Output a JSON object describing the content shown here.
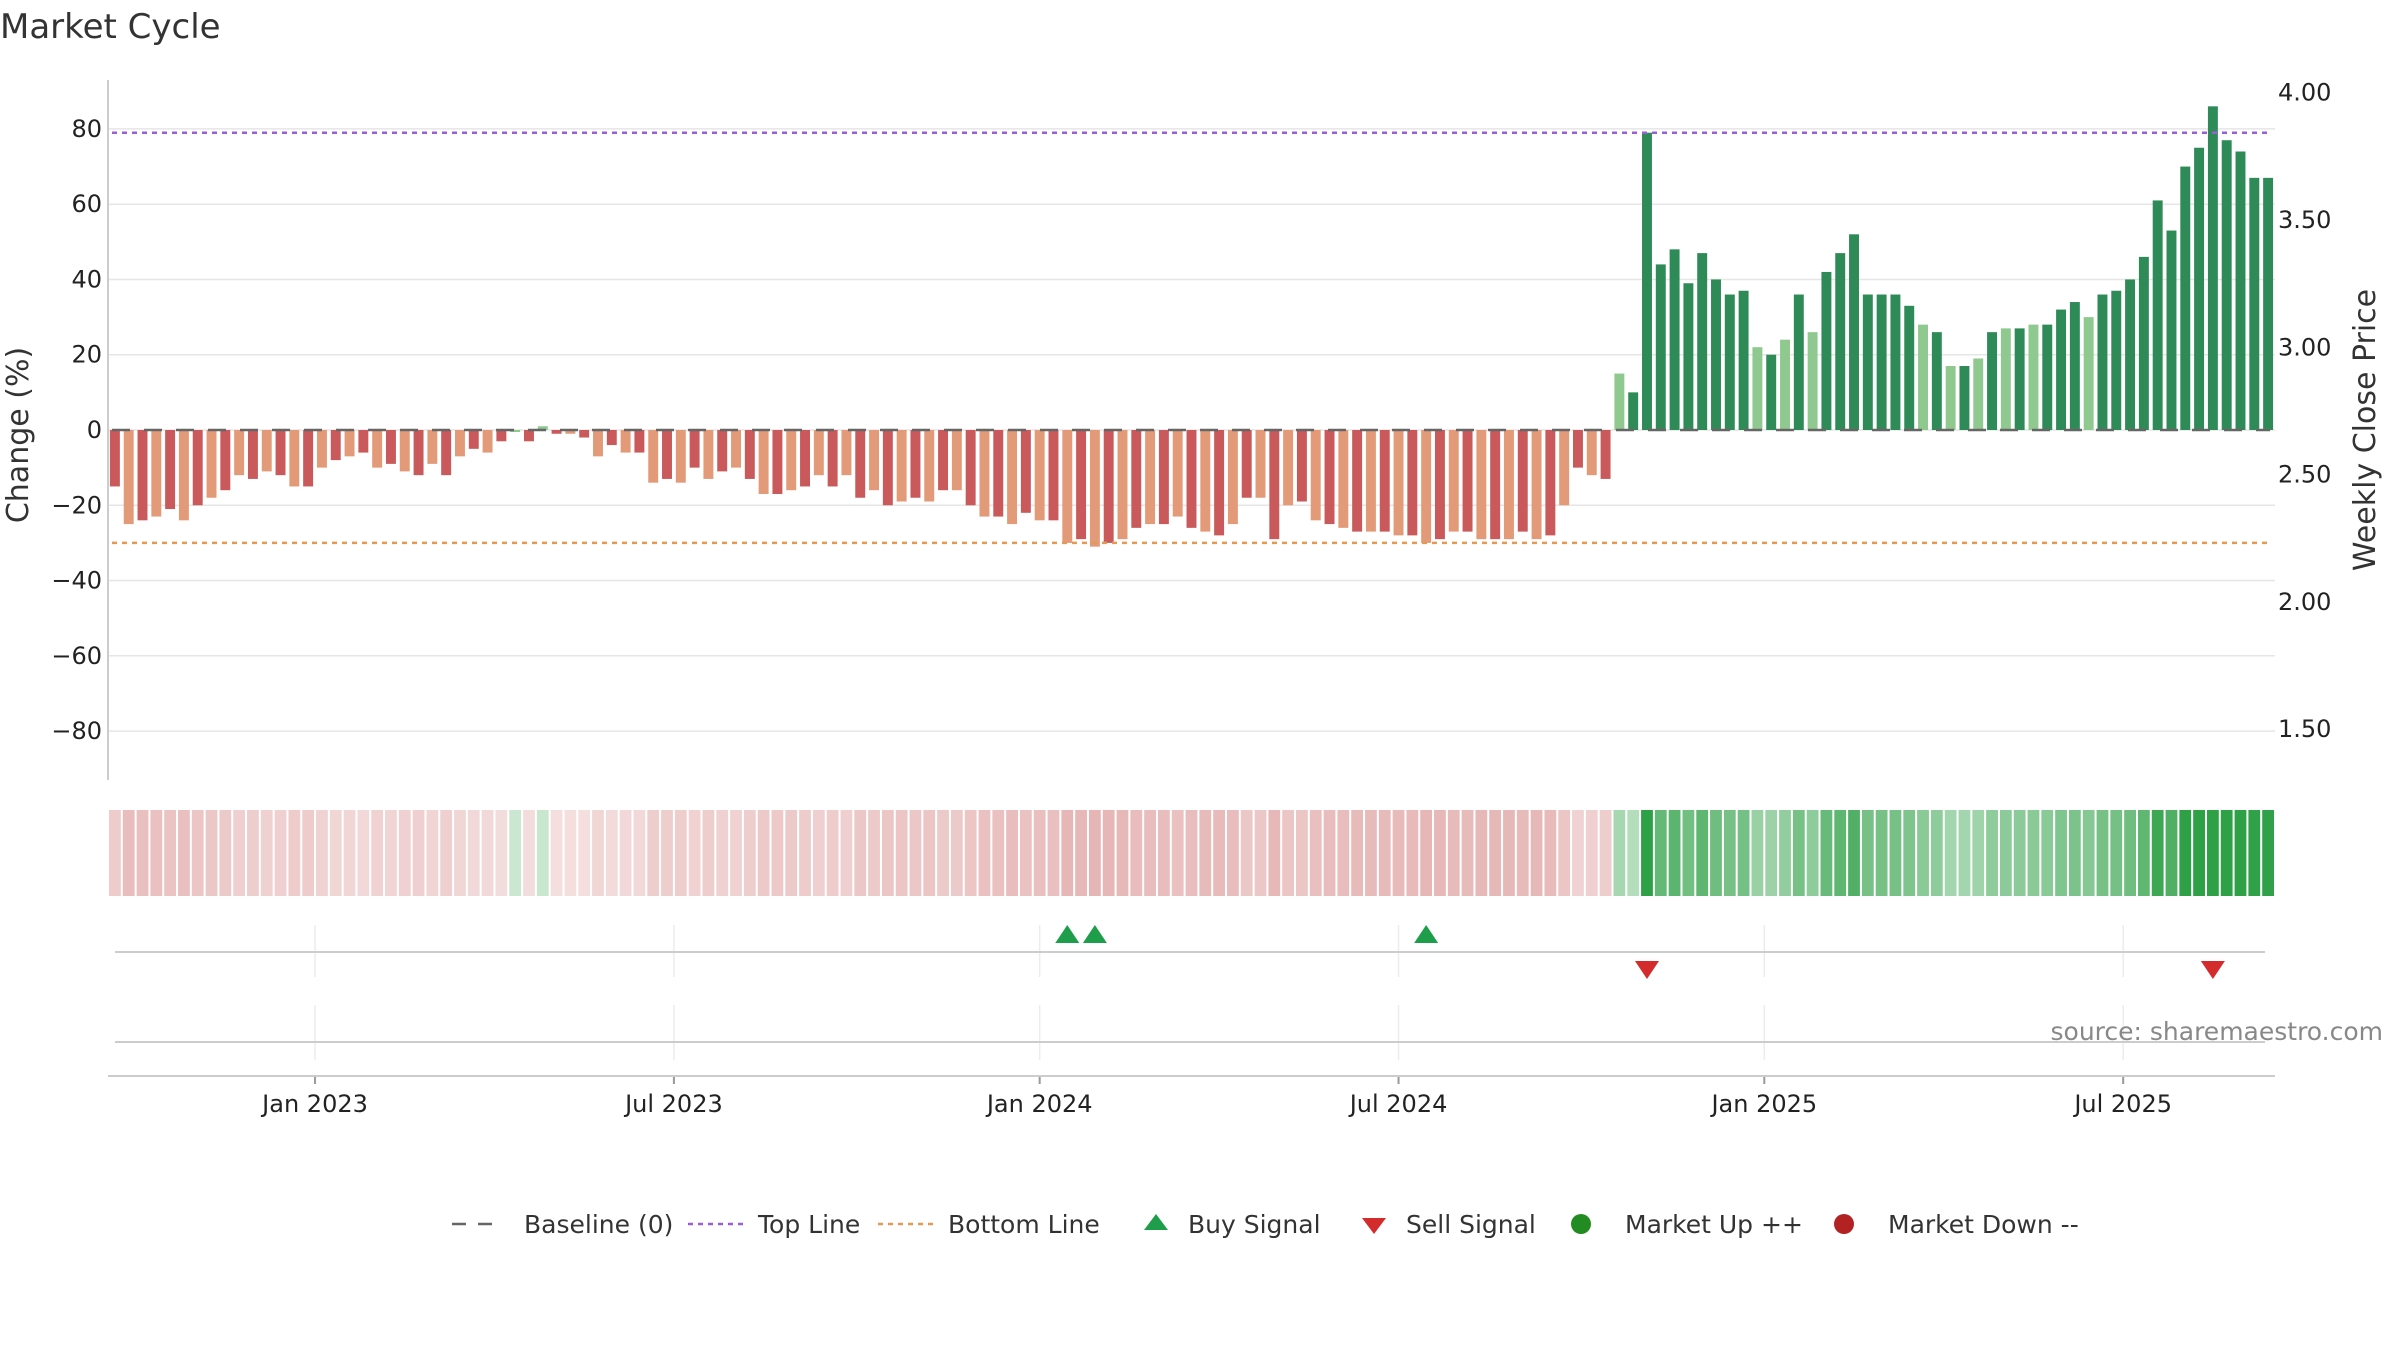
{
  "chart_data": {
    "type": "bar",
    "title": "Market Cycle",
    "ylabel": "Change (%)",
    "ylabel_right": "Weekly Close Price",
    "ylim": [
      -93,
      93
    ],
    "y_ticks": [
      80,
      60,
      40,
      20,
      0,
      -20,
      -40,
      -60,
      -80
    ],
    "y_tick_labels": [
      "80",
      "60",
      "40",
      "20",
      "0",
      "−20",
      "−40",
      "−60",
      "−80"
    ],
    "y2lim": [
      1.3,
      4.05
    ],
    "y2_ticks": [
      4.0,
      3.5,
      3.0,
      2.5,
      2.0,
      1.5
    ],
    "y2_tick_labels": [
      "4.00",
      "3.50",
      "3.00",
      "2.50",
      "2.00",
      "1.50"
    ],
    "x_tick_labels": [
      "Jan 2023",
      "Jul 2023",
      "Jan 2024",
      "Jul 2024",
      "Jan 2025",
      "Jul 2025"
    ],
    "x_tick_index": [
      15,
      41,
      67.5,
      93.5,
      120,
      146
    ],
    "top_line": 79,
    "bottom_line": -30,
    "values": [
      -15,
      -25,
      -24,
      -23,
      -21,
      -24,
      -20,
      -18,
      -16,
      -12,
      -13,
      -11,
      -12,
      -15,
      -15,
      -10,
      -8,
      -7,
      -6,
      -10,
      -9,
      -11,
      -12,
      -9,
      -12,
      -7,
      -5,
      -6,
      -3,
      0,
      -3,
      1,
      -1,
      -1,
      -2,
      -7,
      -4,
      -6,
      -6,
      -14,
      -13,
      -14,
      -10,
      -13,
      -11,
      -10,
      -13,
      -17,
      -17,
      -16,
      -15,
      -12,
      -15,
      -12,
      -18,
      -16,
      -20,
      -19,
      -18,
      -19,
      -16,
      -16,
      -20,
      -23,
      -23,
      -25,
      -22,
      -24,
      -24,
      -30,
      -29,
      -31,
      -30,
      -29,
      -26,
      -25,
      -25,
      -23,
      -26,
      -27,
      -28,
      -25,
      -18,
      -18,
      -29,
      -20,
      -19,
      -24,
      -25,
      -26,
      -27,
      -27,
      -27,
      -28,
      -28,
      -30,
      -29,
      -27,
      -27,
      -29,
      -29,
      -29,
      -27,
      -29,
      -28,
      -20,
      -10,
      -12,
      -13,
      15,
      10,
      79,
      44,
      48,
      39,
      47,
      40,
      36,
      37,
      22,
      20,
      24,
      36,
      26,
      42,
      47,
      52,
      36,
      36,
      36,
      33,
      28,
      26,
      17,
      17,
      19,
      26,
      27,
      27,
      28,
      28,
      32,
      34,
      30,
      36,
      37,
      40,
      46,
      61,
      53,
      70,
      75,
      86,
      77,
      74,
      67,
      67
    ],
    "series": [
      {
        "name": "Baseline (0)",
        "value": 0
      },
      {
        "name": "Top Line",
        "value": 79
      },
      {
        "name": "Bottom Line",
        "value": -30
      }
    ],
    "signals": {
      "buy_index": [
        69,
        71,
        95
      ],
      "sell_index": [
        111,
        152
      ]
    },
    "colors": {
      "pos_dark": "#2e8b57",
      "pos_light": "#8fc98f",
      "neg_dark": "#c9595a",
      "neg_light": "#e39a78",
      "top_line": "#9a5fd4",
      "bottom_line": "#e39a52",
      "baseline": "#666666",
      "buy": "#1e9e4a",
      "sell": "#d42c2c",
      "market_up": "#228b22",
      "market_down": "#b22222"
    }
  },
  "legend": [
    {
      "label": "Baseline (0)",
      "icon": "dash-line-icon"
    },
    {
      "label": "Top Line",
      "icon": "dotted-line-icon"
    },
    {
      "label": "Bottom Line",
      "icon": "dotted-line-icon"
    },
    {
      "label": "Buy Signal",
      "icon": "triangle-up-icon"
    },
    {
      "label": "Sell Signal",
      "icon": "triangle-down-icon"
    },
    {
      "label": "Market Up ++",
      "icon": "circle-icon"
    },
    {
      "label": "Market Down --",
      "icon": "circle-icon"
    }
  ],
  "source": "source: sharemaestro.com"
}
